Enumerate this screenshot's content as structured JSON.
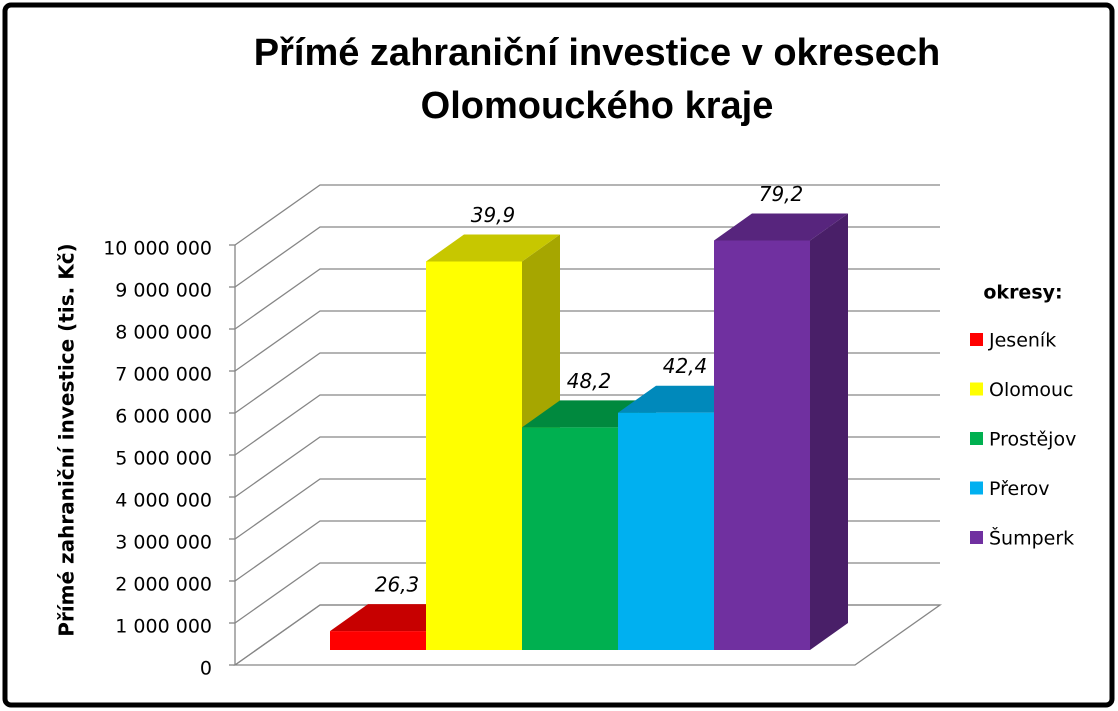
{
  "chart_data": {
    "type": "bar3d",
    "title_lines": [
      "Přímé zahraniční investice v okresech",
      "Olomouckého kraje"
    ],
    "y_label": "Přímé zahraniční investice (tis. Kč)",
    "categories": [
      "Jeseník",
      "Olomouc",
      "Prostějov",
      "Přerov",
      "Šumperk"
    ],
    "values": [
      450000,
      9250000,
      5300000,
      5650000,
      9750000
    ],
    "colors": [
      "#ff0000",
      "#ffff00",
      "#00b050",
      "#00b0f0",
      "#7030a0"
    ],
    "bar_labels": [
      "26,3",
      "39,9",
      "48,2",
      "42,4",
      "79,2"
    ],
    "legend_title": "okresy:",
    "legend_position": "right",
    "grid": true,
    "ylim": [
      0,
      10000000
    ],
    "yticks": [
      0,
      {
        "value": 1000000,
        "label": "1 000 000"
      },
      {
        "value": 2000000,
        "label": "2 000 000"
      },
      {
        "value": 3000000,
        "label": "3 000 000"
      },
      {
        "value": 4000000,
        "label": "4 000 000"
      },
      {
        "value": 5000000,
        "label": "5 000 000"
      },
      {
        "value": 6000000,
        "label": "6 000 000"
      },
      {
        "value": 7000000,
        "label": "7 000 000"
      },
      {
        "value": 8000000,
        "label": "8 000 000"
      },
      {
        "value": 9000000,
        "label": "9 000 000"
      },
      {
        "value": 10000000,
        "label": "10 000 000"
      }
    ]
  }
}
